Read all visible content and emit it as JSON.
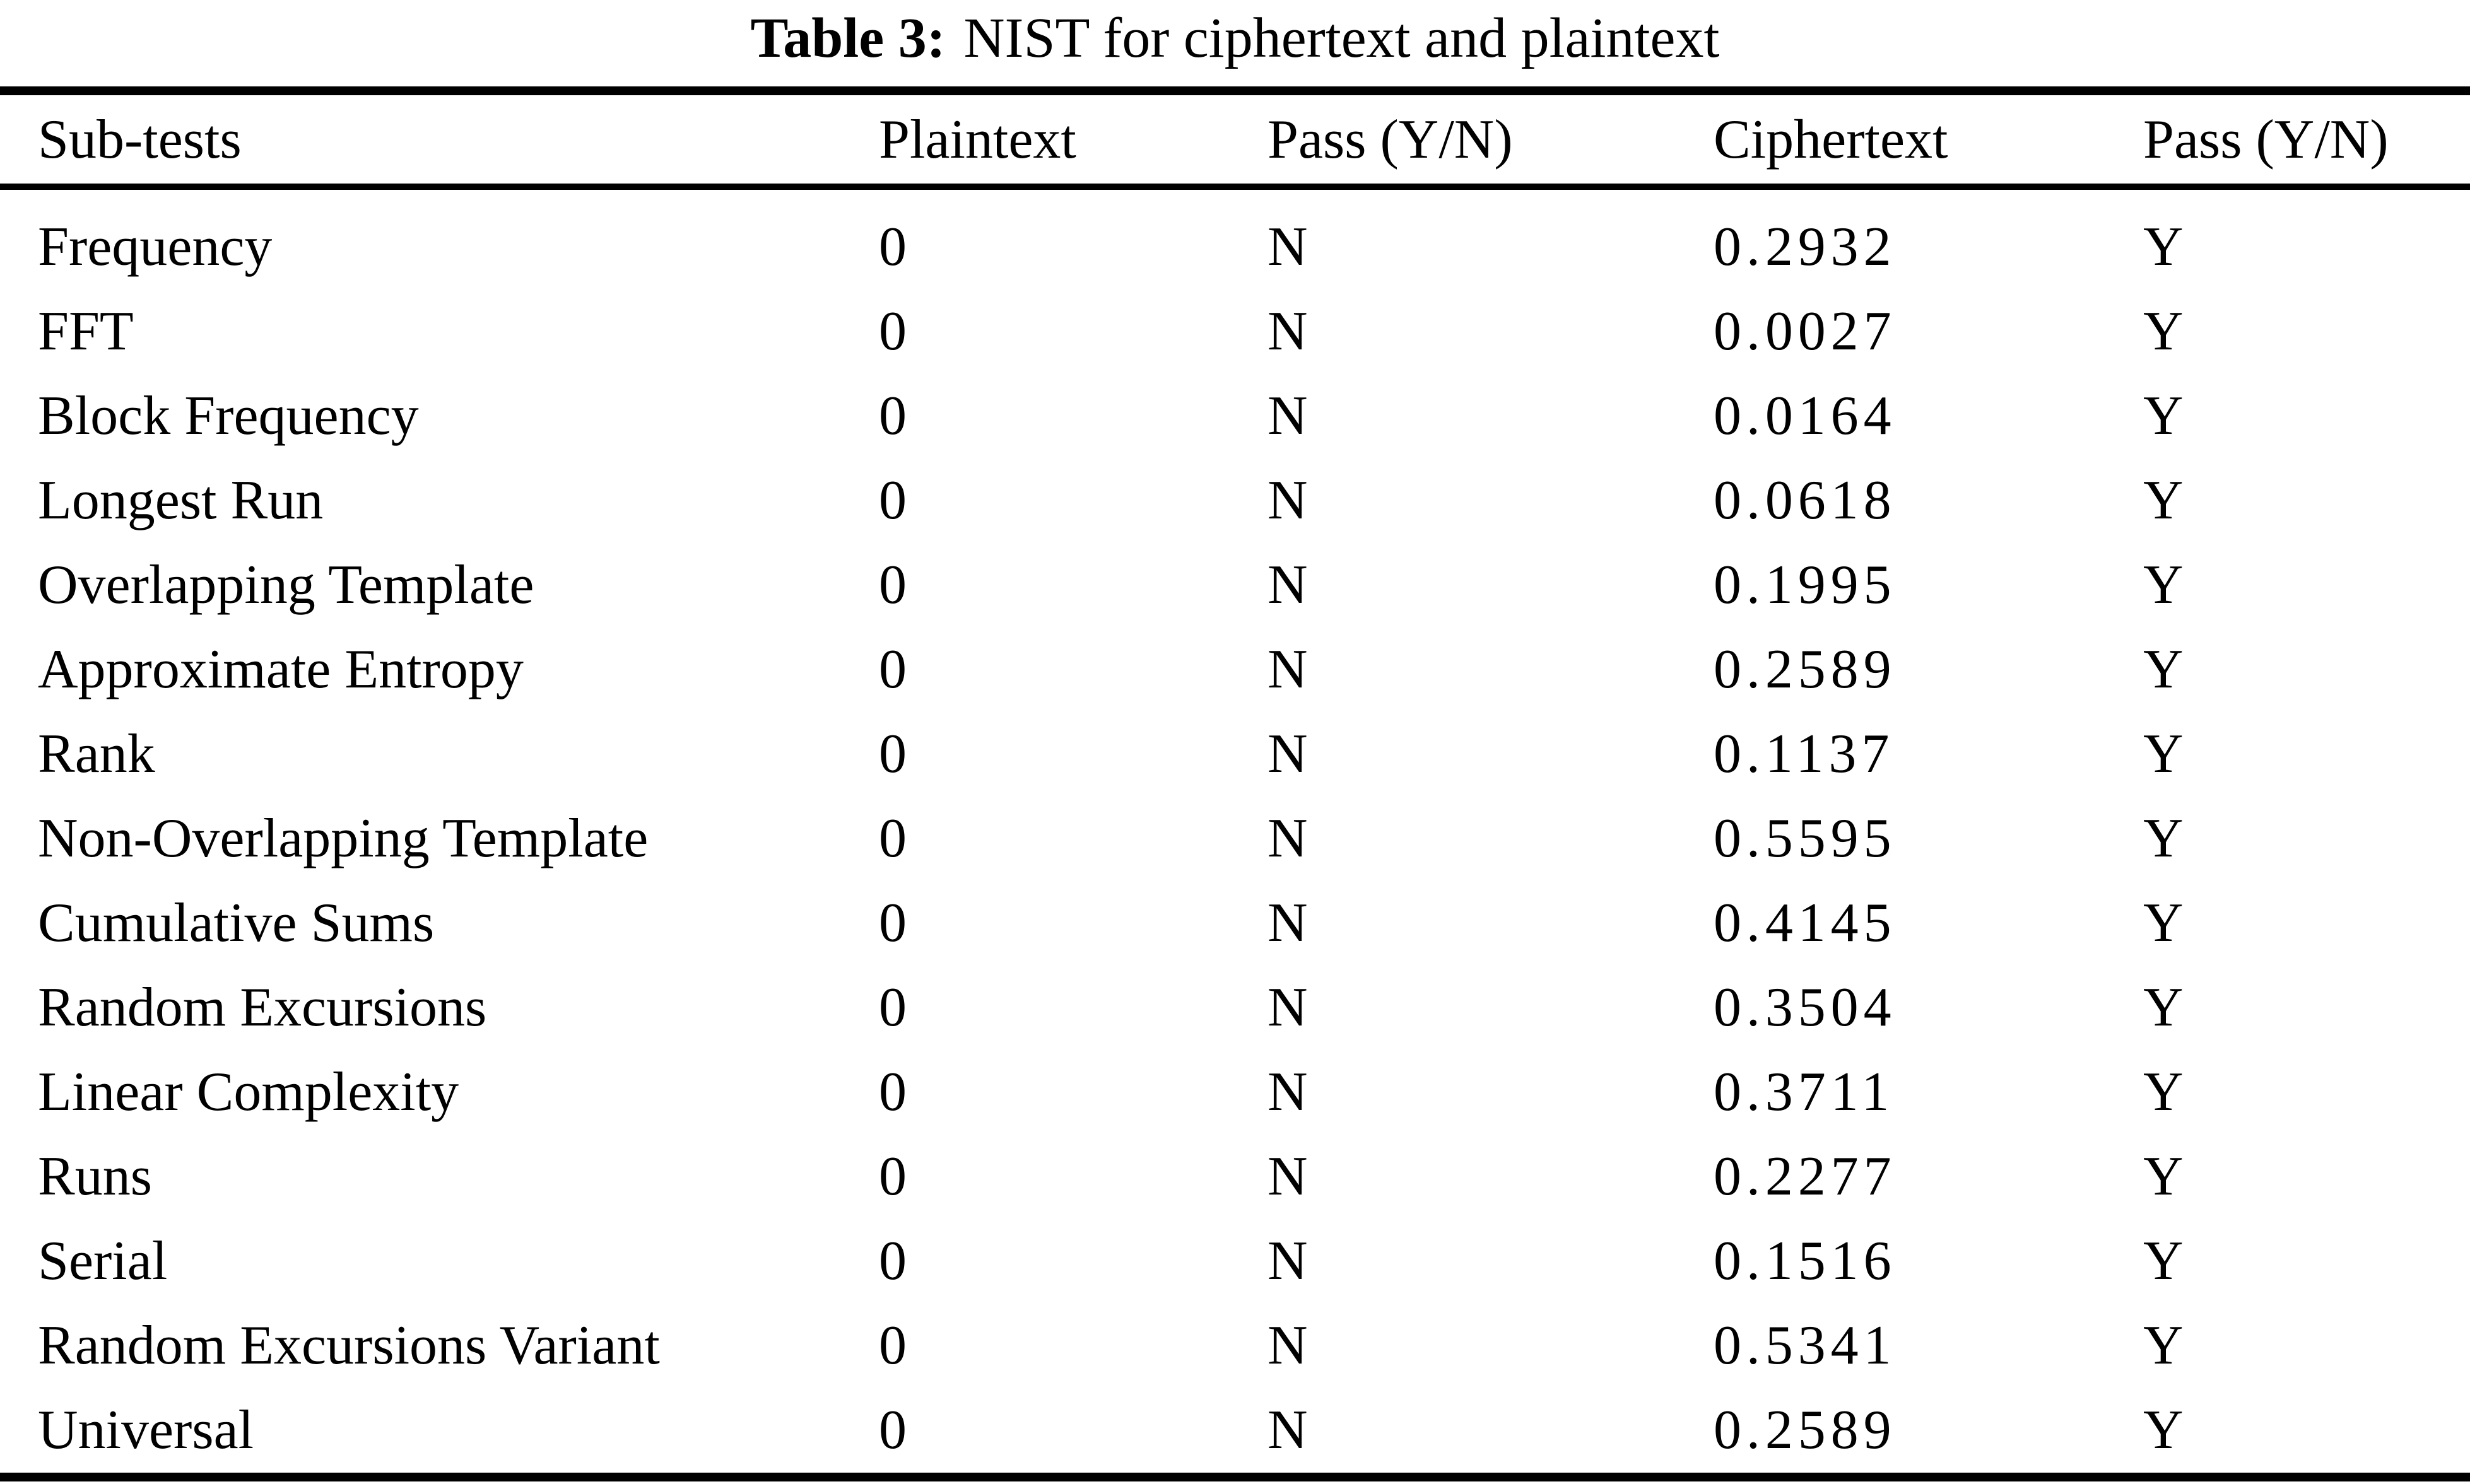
{
  "caption": {
    "label": "Table 3:",
    "text": "NIST for ciphertext and plaintext"
  },
  "table": {
    "columns": [
      "Sub-tests",
      "Plaintext",
      "Pass (Y/N)",
      "Ciphertext",
      "Pass (Y/N)"
    ],
    "rows": [
      [
        "Frequency",
        "0",
        "N",
        "0.2932",
        "Y"
      ],
      [
        "FFT",
        "0",
        "N",
        "0.0027",
        "Y"
      ],
      [
        "Block Frequency",
        "0",
        "N",
        "0.0164",
        "Y"
      ],
      [
        "Longest Run",
        "0",
        "N",
        "0.0618",
        "Y"
      ],
      [
        "Overlapping Template",
        "0",
        "N",
        "0.1995",
        "Y"
      ],
      [
        "Approximate Entropy",
        "0",
        "N",
        "0.2589",
        "Y"
      ],
      [
        "Rank",
        "0",
        "N",
        "0.1137",
        "Y"
      ],
      [
        "Non-Overlapping Template",
        "0",
        "N",
        "0.5595",
        "Y"
      ],
      [
        "Cumulative Sums",
        "0",
        "N",
        "0.4145",
        "Y"
      ],
      [
        "Random Excursions",
        "0",
        "N",
        "0.3504",
        "Y"
      ],
      [
        "Linear Complexity",
        "0",
        "N",
        "0.3711",
        "Y"
      ],
      [
        "Runs",
        "0",
        "N",
        "0.2277",
        "Y"
      ],
      [
        "Serial",
        "0",
        "N",
        "0.1516",
        "Y"
      ],
      [
        "Random Excursions Variant",
        "0",
        "N",
        "0.5341",
        "Y"
      ],
      [
        "Universal",
        "0",
        "N",
        "0.2589",
        "Y"
      ]
    ]
  },
  "colors": {
    "text": "#000000",
    "background": "#ffffff",
    "rule": "#000000"
  }
}
